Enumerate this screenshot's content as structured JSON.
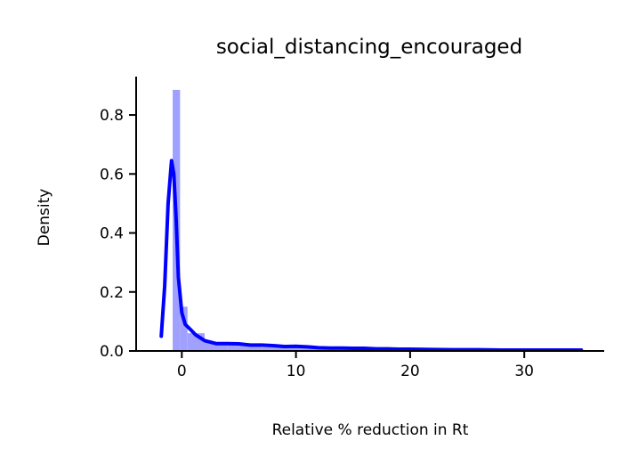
{
  "chart_data": {
    "type": "area",
    "title": "social_distancing_encouraged",
    "xlabel": "Relative % reduction in Rt",
    "ylabel": "Density",
    "xlim": [
      -4,
      37
    ],
    "ylim": [
      0,
      0.93
    ],
    "x_ticks": [
      0,
      10,
      20,
      30
    ],
    "y_ticks": [
      0.0,
      0.2,
      0.4,
      0.6,
      0.8
    ],
    "x_tick_labels": [
      "0",
      "10",
      "20",
      "30"
    ],
    "y_tick_labels": [
      "0.0",
      "0.2",
      "0.4",
      "0.6",
      "0.8"
    ],
    "grid": false,
    "legend": "none",
    "series": [
      {
        "kind": "histogram",
        "color": "#a0a0ff",
        "bins": [
          {
            "x0": -0.8,
            "x1": -0.15,
            "density": 0.885
          },
          {
            "x0": -0.15,
            "x1": 0.5,
            "density": 0.15
          },
          {
            "x0": 0.5,
            "x1": 2.0,
            "density": 0.06
          },
          {
            "x0": 2.0,
            "x1": 4.0,
            "density": 0.03
          },
          {
            "x0": 4.0,
            "x1": 7.0,
            "density": 0.02
          },
          {
            "x0": 7.0,
            "x1": 11.0,
            "density": 0.013
          },
          {
            "x0": 11.0,
            "x1": 16.0,
            "density": 0.008
          },
          {
            "x0": 16.0,
            "x1": 22.0,
            "density": 0.005
          },
          {
            "x0": 22.0,
            "x1": 28.0,
            "density": 0.003
          },
          {
            "x0": 28.0,
            "x1": 35.0,
            "density": 0.002
          }
        ]
      },
      {
        "kind": "kde",
        "color": "#0000ff",
        "x": [
          -1.8,
          -1.5,
          -1.2,
          -0.9,
          -0.7,
          -0.5,
          -0.3,
          0.0,
          0.3,
          0.7,
          1.2,
          2.0,
          3.0,
          4.0,
          5.0,
          6.0,
          7.0,
          8.0,
          9.0,
          10.0,
          11.0,
          12.0,
          13.0,
          14.0,
          15.0,
          16.0,
          17.0,
          18.0,
          19.0,
          20.0,
          22.0,
          24.0,
          26.0,
          28.0,
          30.0,
          32.0,
          33.5,
          35.0
        ],
        "y": [
          0.05,
          0.22,
          0.5,
          0.645,
          0.6,
          0.45,
          0.25,
          0.13,
          0.09,
          0.075,
          0.055,
          0.035,
          0.025,
          0.025,
          0.024,
          0.02,
          0.02,
          0.018,
          0.015,
          0.016,
          0.014,
          0.011,
          0.01,
          0.01,
          0.009,
          0.009,
          0.007,
          0.007,
          0.006,
          0.006,
          0.005,
          0.004,
          0.004,
          0.003,
          0.003,
          0.003,
          0.003,
          0.003
        ]
      }
    ]
  }
}
